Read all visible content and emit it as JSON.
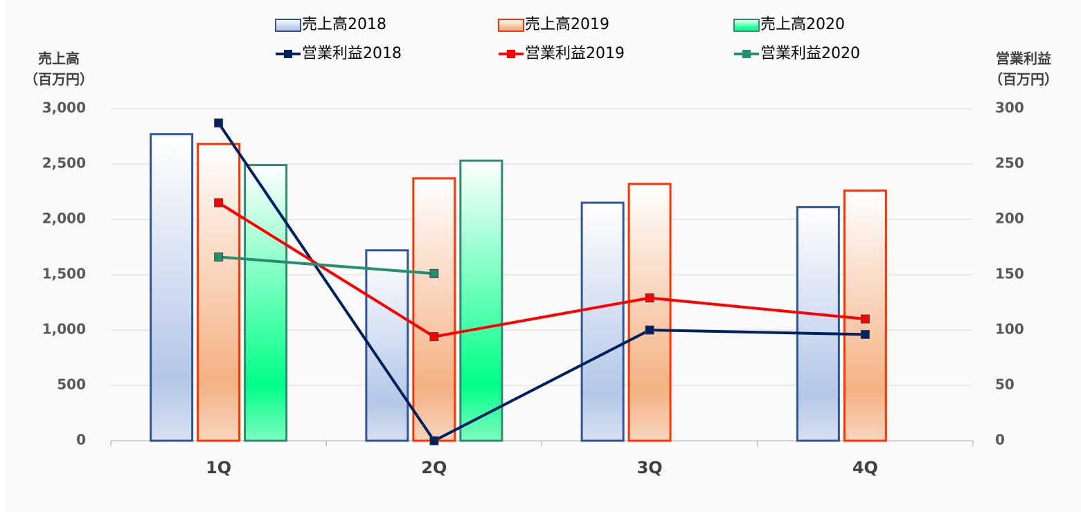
{
  "chart_data": {
    "type": "bar",
    "categories": [
      "1Q",
      "2Q",
      "3Q",
      "4Q"
    ],
    "y_label": [
      "売上高",
      "（百万円）"
    ],
    "y2_label": [
      "営業利益",
      "（百万円）"
    ],
    "ylim": [
      0,
      3000
    ],
    "yticks": [
      0,
      {
        "value": 500,
        "label": "500"
      },
      {
        "value": 1000,
        "label": "1,000"
      },
      {
        "value": 1500,
        "label": "1,500"
      },
      {
        "value": 2000,
        "label": "2,000"
      },
      {
        "value": 2500,
        "label": "2,500"
      },
      {
        "value": 3000,
        "label": "3,000"
      }
    ],
    "y2lim": [
      0,
      300
    ],
    "y2ticks": [
      0,
      50,
      100,
      150,
      200,
      250,
      300
    ],
    "grid": true,
    "series": [
      {
        "name": "売上高2018",
        "type": "bar",
        "color": "#2f5597",
        "fill": "#b4c7e7",
        "values": [
          2770,
          1720,
          2150,
          2110
        ]
      },
      {
        "name": "売上高2019",
        "type": "bar",
        "color": "#ff3300",
        "fill": "#f4b183",
        "values": [
          2680,
          2370,
          2320,
          2260
        ]
      },
      {
        "name": "売上高2020",
        "type": "bar",
        "color": "#2e8b6f",
        "fill": "#00ff88",
        "values": [
          2490,
          2530,
          null,
          null
        ]
      },
      {
        "name": "営業利益2018",
        "type": "line",
        "axis": "y2",
        "color": "#002060",
        "values": [
          287,
          0,
          100,
          96
        ]
      },
      {
        "name": "営業利益2019",
        "type": "line",
        "axis": "y2",
        "color": "#ff0000",
        "values": [
          215,
          94,
          129,
          110
        ]
      },
      {
        "name": "営業利益2020",
        "type": "line",
        "axis": "y2",
        "color": "#259070",
        "values": [
          166,
          151,
          null,
          null
        ]
      }
    ]
  }
}
